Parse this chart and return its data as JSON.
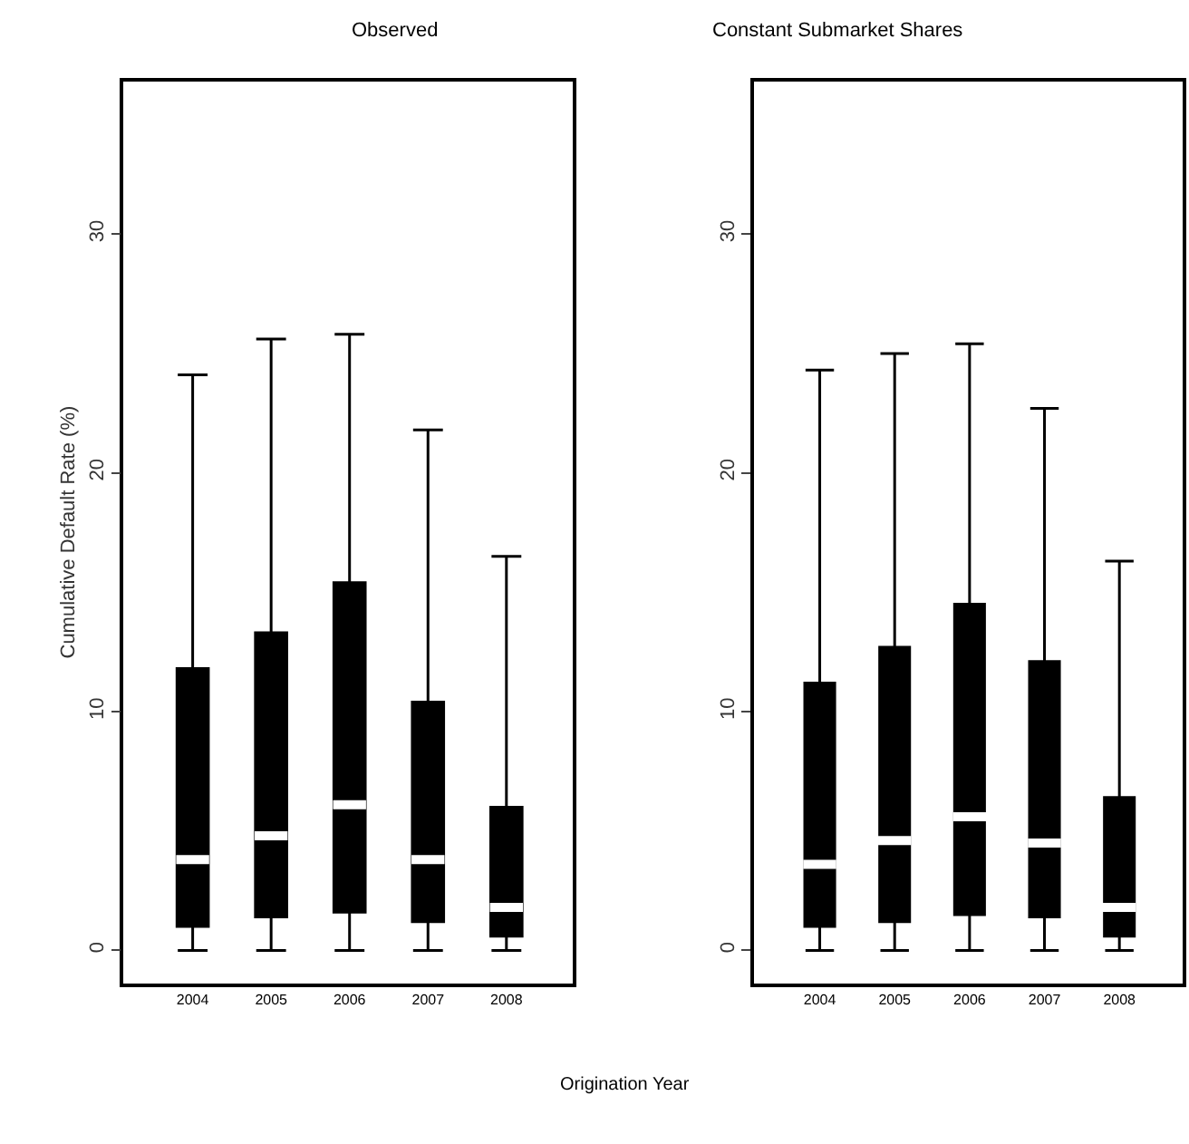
{
  "chart_data": [
    {
      "type": "box",
      "title": "Observed",
      "xlabel": "Origination Year",
      "ylabel": "Cumulative Default Rate (%)",
      "categories": [
        "2004",
        "2005",
        "2006",
        "2007",
        "2008"
      ],
      "ylim": [
        -1.4,
        36.4
      ],
      "yticks": [
        0,
        10,
        20,
        30
      ],
      "color": "#000000",
      "boxes": [
        {
          "low": 0,
          "q1": 1.0,
          "median": 3.8,
          "q3": 11.8,
          "high": 24.1
        },
        {
          "low": 0,
          "q1": 1.4,
          "median": 4.8,
          "q3": 13.3,
          "high": 25.6
        },
        {
          "low": 0,
          "q1": 1.6,
          "median": 6.1,
          "q3": 15.4,
          "high": 25.8
        },
        {
          "low": 0,
          "q1": 1.2,
          "median": 3.8,
          "q3": 10.4,
          "high": 21.8
        },
        {
          "low": 0,
          "q1": 0.6,
          "median": 1.8,
          "q3": 6.0,
          "high": 16.5
        }
      ]
    },
    {
      "type": "box",
      "title": "Constant Submarket Shares",
      "categories": [
        "2004",
        "2005",
        "2006",
        "2007",
        "2008"
      ],
      "ylim": [
        -1.4,
        36.4
      ],
      "yticks": [
        0,
        10,
        20,
        30
      ],
      "color": "#000000",
      "boxes": [
        {
          "low": 0,
          "q1": 1.0,
          "median": 3.6,
          "q3": 11.2,
          "high": 24.3
        },
        {
          "low": 0,
          "q1": 1.2,
          "median": 4.6,
          "q3": 12.7,
          "high": 25.0
        },
        {
          "low": 0,
          "q1": 1.5,
          "median": 5.6,
          "q3": 14.5,
          "high": 25.4
        },
        {
          "low": 0,
          "q1": 1.4,
          "median": 4.5,
          "q3": 12.1,
          "high": 22.7
        },
        {
          "low": 0,
          "q1": 0.6,
          "median": 1.8,
          "q3": 6.4,
          "high": 16.3
        }
      ]
    }
  ]
}
